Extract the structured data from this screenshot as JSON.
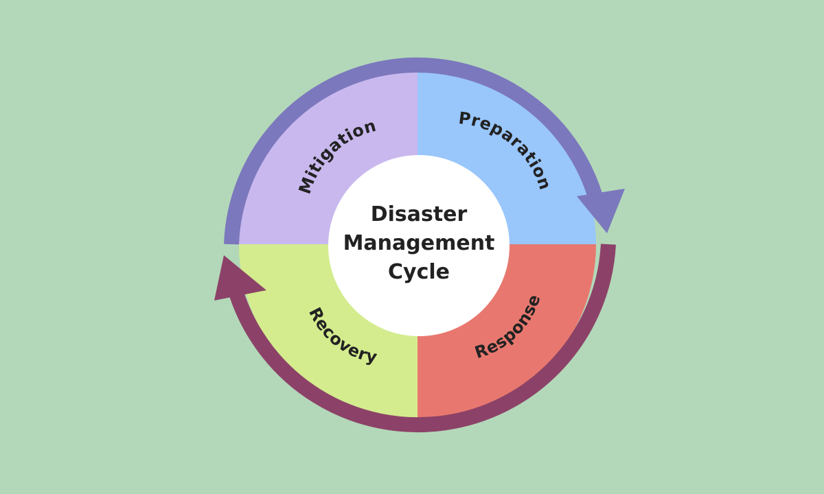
{
  "background": "#b3d8b9",
  "center": {
    "title_lines": [
      "Disaster",
      "Management",
      "Cycle"
    ],
    "fill": "#ffffff"
  },
  "segments": [
    {
      "key": "mitigation",
      "label": "Mitigation",
      "color": "#c9b8ee"
    },
    {
      "key": "preparation",
      "label": "Preparation",
      "color": "#99c6fb"
    },
    {
      "key": "response",
      "label": "Response",
      "color": "#e8786f"
    },
    {
      "key": "recovery",
      "label": "Recovery",
      "color": "#d4ec8e"
    }
  ],
  "arrows": {
    "top_color": "#7b78bd",
    "bottom_color": "#8c4268"
  }
}
